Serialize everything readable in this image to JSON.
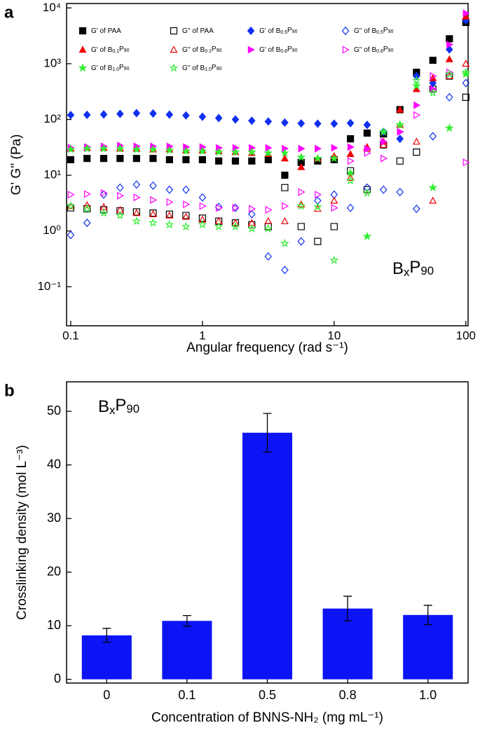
{
  "chart_data": [
    {
      "type": "scatter",
      "panel_label": "a",
      "x_label": "Angular frequency (rad s⁻¹)",
      "y_label": "G' G'' (Pa)",
      "annotation": "BxP90",
      "xscale": "log",
      "yscale": "log",
      "xlim": [
        0.093,
        104
      ],
      "ylim": [
        0.02,
        12000
      ],
      "xticks": [
        0.1,
        1,
        10,
        100
      ],
      "yticks": [
        {
          "value": 0.1,
          "label": "10⁻¹"
        },
        {
          "value": 1,
          "label": "10⁰"
        },
        {
          "value": 10,
          "label": "10¹"
        },
        {
          "value": 100,
          "label": "10²"
        },
        {
          "value": 1000,
          "label": "10³"
        },
        {
          "value": 10000,
          "label": "10⁴"
        }
      ],
      "x": [
        0.1,
        0.133,
        0.178,
        0.237,
        0.316,
        0.422,
        0.562,
        0.75,
        1,
        1.33,
        1.78,
        2.37,
        3.16,
        4.22,
        5.62,
        7.5,
        10,
        13.3,
        17.8,
        23.7,
        31.6,
        42.2,
        56.2,
        75,
        100
      ],
      "series": [
        {
          "name": "G' of PAA",
          "color": "#000000",
          "marker": "square",
          "filled": true,
          "values": [
            19,
            20,
            20,
            20,
            20,
            20,
            19,
            19,
            19,
            18,
            18,
            18,
            19,
            10,
            17,
            18,
            19,
            45,
            57,
            55,
            150,
            700,
            1150,
            2800,
            5500
          ]
        },
        {
          "name": "G'' of PAA",
          "color": "#000000",
          "marker": "square",
          "filled": false,
          "values": [
            2.6,
            2.5,
            2.4,
            2.3,
            2.2,
            2.1,
            2,
            1.9,
            1.7,
            1.5,
            1.4,
            1.3,
            1.2,
            6,
            1.2,
            0.65,
            1.2,
            12,
            5.5,
            35,
            18,
            26,
            350,
            600,
            250
          ]
        },
        {
          "name": "G' of B0.5P90",
          "color": "#1030ee",
          "marker": "diamond",
          "filled": true,
          "values": [
            120,
            121,
            123,
            126,
            130,
            128,
            122,
            118,
            112,
            106,
            100,
            95,
            92,
            88,
            85,
            84,
            84,
            86,
            80,
            60,
            45,
            600,
            450,
            1800,
            6000
          ]
        },
        {
          "name": "G'' of B0.5P90",
          "color": "#1030ee",
          "marker": "diamond",
          "filled": false,
          "values": [
            0.85,
            1.4,
            4.5,
            6,
            6.8,
            6.5,
            5.5,
            5.5,
            4,
            2.7,
            2.6,
            2,
            0.35,
            0.2,
            0.65,
            3.5,
            4.5,
            2.6,
            6,
            5.5,
            5,
            2.5,
            50,
            250,
            450
          ]
        },
        {
          "name": "G' of B0.1P90",
          "color": "#ee0000",
          "marker": "triangle",
          "filled": true,
          "values": [
            30,
            31,
            31,
            30,
            30,
            29,
            29,
            28,
            28,
            27,
            26,
            25,
            24,
            20,
            14,
            20,
            22,
            24,
            32,
            40,
            150,
            350,
            550,
            1200,
            7000
          ]
        },
        {
          "name": "G'' of B0.1P90",
          "color": "#ee0000",
          "marker": "triangle",
          "filled": false,
          "values": [
            2.8,
            2.9,
            2.7,
            2.4,
            2.1,
            2,
            1.9,
            1.8,
            1.6,
            1.5,
            1.4,
            1.4,
            1.5,
            1.5,
            3,
            2.5,
            3.5,
            9,
            30,
            35,
            80,
            40,
            3.5,
            600,
            1000
          ]
        },
        {
          "name": "G' of B0.8P90",
          "color": "#ff00ff",
          "marker": "triangle-right",
          "filled": true,
          "values": [
            31,
            32,
            33,
            34,
            33,
            33,
            33,
            32,
            32,
            31,
            31,
            31,
            31,
            30,
            30,
            30,
            31,
            32,
            30,
            40,
            60,
            180,
            350,
            2200,
            8000
          ]
        },
        {
          "name": "G'' of B0.8P90",
          "color": "#ff00ff",
          "marker": "triangle-right",
          "filled": false,
          "values": [
            4.5,
            4.6,
            4.8,
            4.3,
            4,
            3.6,
            3.3,
            3,
            2.8,
            2.6,
            2.6,
            2.5,
            2.4,
            2.8,
            5,
            4.5,
            2.6,
            18,
            25,
            20,
            60,
            120,
            600,
            700,
            17
          ]
        },
        {
          "name": "G' of B1.0P90",
          "color": "#33ee33",
          "marker": "star",
          "filled": true,
          "values": [
            29,
            30,
            30,
            30,
            29,
            29,
            28,
            27,
            27,
            26,
            26,
            26,
            25,
            25,
            21,
            20,
            20,
            11,
            0.8,
            60,
            80,
            400,
            6,
            70,
            650
          ]
        },
        {
          "name": "G'' of B1.0P90",
          "color": "#33ee33",
          "marker": "star",
          "filled": false,
          "values": [
            2.8,
            2.5,
            2.1,
            1.9,
            1.5,
            1.4,
            1.3,
            1.2,
            1.3,
            1.2,
            1.2,
            1.1,
            1.1,
            0.6,
            2.8,
            2.7,
            0.3,
            8,
            4.8,
            60,
            80,
            500,
            300,
            650,
            700
          ]
        }
      ]
    },
    {
      "type": "bar",
      "panel_label": "b",
      "x_label": "Concentration of BNNS-NH₂ (mg mL⁻¹)",
      "y_label": "Crosslinking density (mol L⁻³)",
      "annotation": "BxP90",
      "categories": [
        "0",
        "0.1",
        "0.5",
        "0.8",
        "1.0"
      ],
      "values": [
        8.2,
        10.9,
        46,
        13.2,
        12
      ],
      "errors": [
        1.3,
        1,
        3.6,
        2.3,
        1.8
      ],
      "color": "#0c14f5",
      "ylim": [
        -0.7,
        55.5
      ],
      "yticks": [
        0,
        10,
        20,
        30,
        40,
        50
      ]
    }
  ]
}
